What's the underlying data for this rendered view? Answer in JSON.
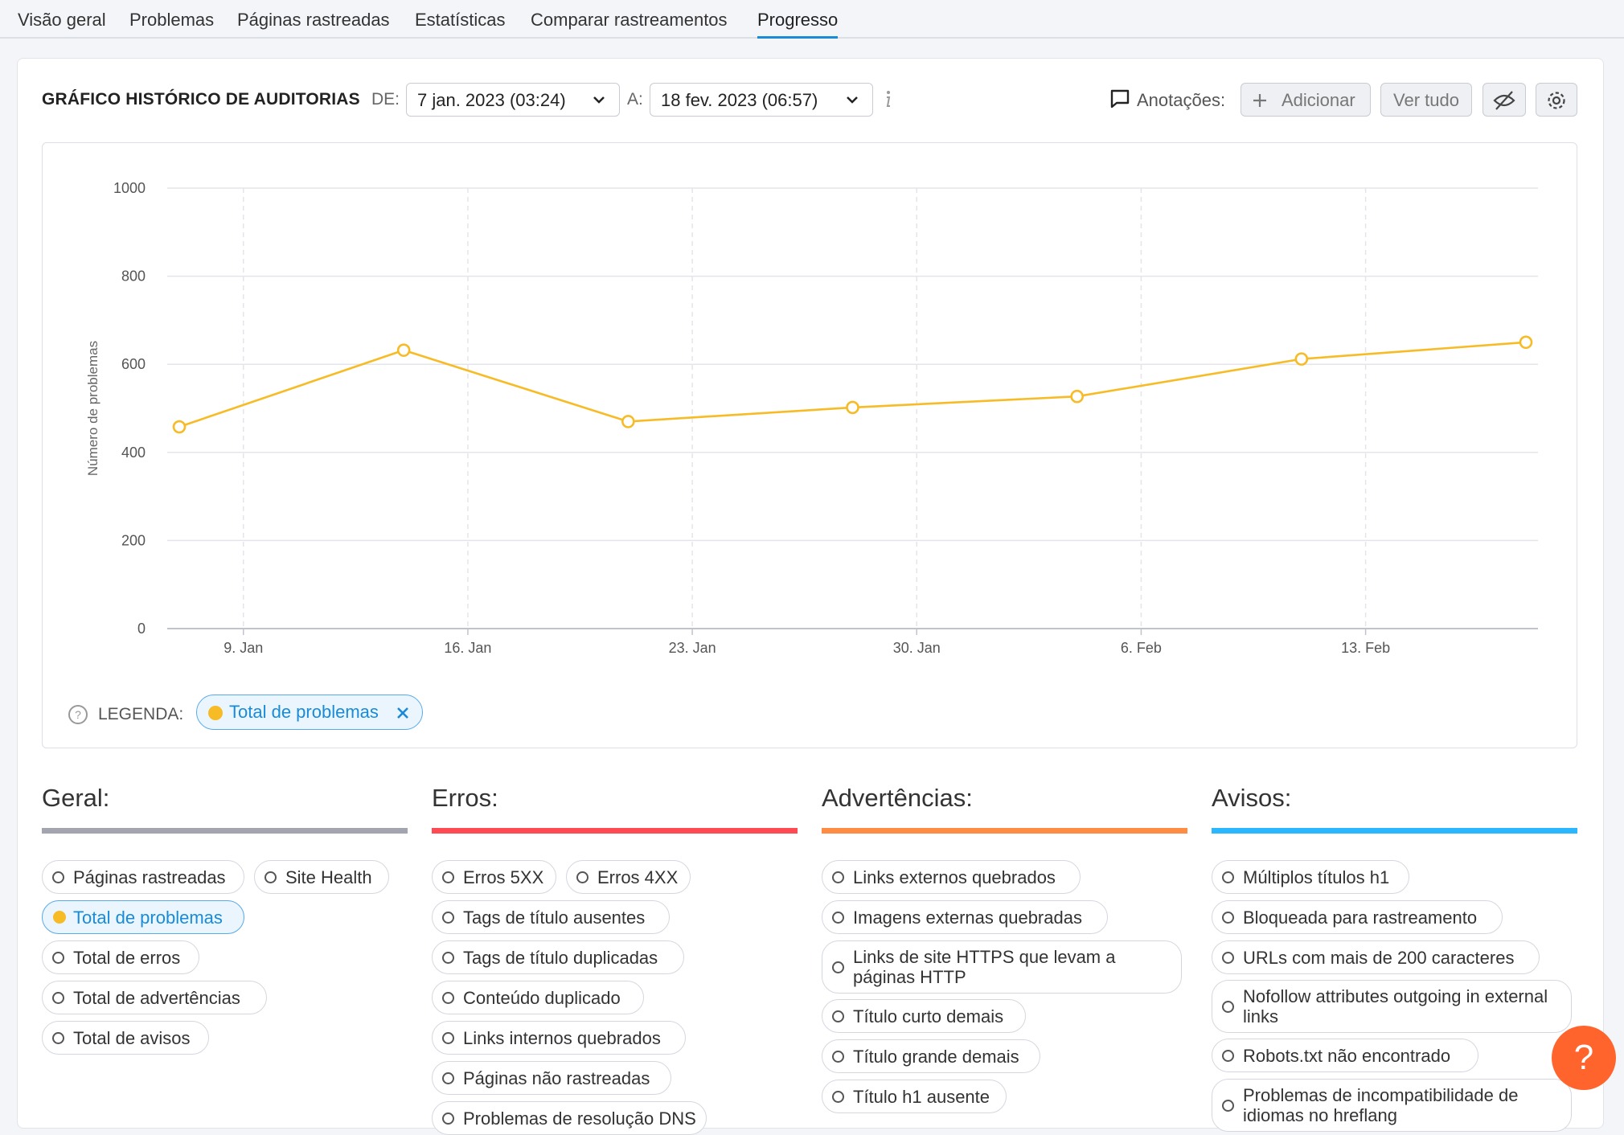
{
  "tabs": [
    {
      "label": "Visão geral"
    },
    {
      "label": "Problemas"
    },
    {
      "label": "Páginas rastreadas"
    },
    {
      "label": "Estatísticas"
    },
    {
      "label": "Comparar rastreamentos"
    },
    {
      "label": "Progresso",
      "active": true
    }
  ],
  "header": {
    "title": "GRÁFICO HISTÓRICO DE AUDITORIAS",
    "from_label": "DE:",
    "from_value": "7 jan. 2023 (03:24)",
    "to_label": "A:",
    "to_value": "18 fev. 2023 (06:57)",
    "info_icon": "info-icon",
    "annotations_label": "Anotações:",
    "add_label": "Adicionar",
    "view_all_label": "Ver tudo",
    "hide_icon": "eye-off-icon",
    "settings_icon": "gear-icon"
  },
  "chart_data": {
    "type": "line",
    "x": [
      "2023-01-07",
      "2023-01-14",
      "2023-01-21",
      "2023-01-28",
      "2023-02-04",
      "2023-02-11",
      "2023-02-18"
    ],
    "series": [
      {
        "name": "Total de problemas",
        "color": "#f7bb25",
        "values": [
          458,
          632,
          470,
          502,
          527,
          612,
          650
        ]
      }
    ],
    "x_ticks": [
      {
        "date": "2023-01-09",
        "label": "9. Jan"
      },
      {
        "date": "2023-01-16",
        "label": "16. Jan"
      },
      {
        "date": "2023-01-23",
        "label": "23. Jan"
      },
      {
        "date": "2023-01-30",
        "label": "30. Jan"
      },
      {
        "date": "2023-02-06",
        "label": "6. Feb"
      },
      {
        "date": "2023-02-13",
        "label": "13. Feb"
      }
    ],
    "y_ticks": [
      0,
      200,
      400,
      600,
      800,
      1000
    ],
    "ylim": [
      0,
      1000
    ],
    "ylabel": "Número de problemas",
    "xlabel": "",
    "grid": true,
    "legend": {
      "label": "LEGENDA:",
      "entries": [
        "Total de problemas"
      ]
    }
  },
  "sections": [
    {
      "title": "Geral:",
      "color": "#a2a5b0",
      "items": [
        {
          "label": "Páginas rastreadas"
        },
        {
          "label": "Site Health"
        },
        {
          "label": "Total de problemas",
          "active": true
        },
        {
          "label": "Total de erros"
        },
        {
          "label": "Total de advertências"
        },
        {
          "label": "Total de avisos"
        }
      ]
    },
    {
      "title": "Erros:",
      "color": "#ff4953",
      "items": [
        {
          "label": "Erros 5XX"
        },
        {
          "label": "Erros 4XX"
        },
        {
          "label": "Tags de título ausentes"
        },
        {
          "label": "Tags de título duplicadas"
        },
        {
          "label": "Conteúdo duplicado"
        },
        {
          "label": "Links internos quebrados"
        },
        {
          "label": "Páginas não rastreadas"
        },
        {
          "label": "Problemas de resolução DNS"
        }
      ]
    },
    {
      "title": "Advertências:",
      "color": "#ff8c43",
      "items": [
        {
          "label": "Links externos quebrados"
        },
        {
          "label": "Imagens externas quebradas"
        },
        {
          "label": "Links de site HTTPS que levam a páginas HTTP"
        },
        {
          "label": "Título curto demais"
        },
        {
          "label": "Título grande demais"
        },
        {
          "label": "Título h1 ausente"
        }
      ]
    },
    {
      "title": "Avisos:",
      "color": "#2bb7ff",
      "items": [
        {
          "label": "Múltiplos títulos h1"
        },
        {
          "label": "Bloqueada para rastreamento"
        },
        {
          "label": "URLs com mais de 200 caracteres"
        },
        {
          "label": "Nofollow attributes outgoing in external links"
        },
        {
          "label": "Robots.txt não encontrado"
        },
        {
          "label": "Problemas de incompatibilidade de idiomas no hreflang"
        }
      ]
    }
  ],
  "help_label": "?"
}
